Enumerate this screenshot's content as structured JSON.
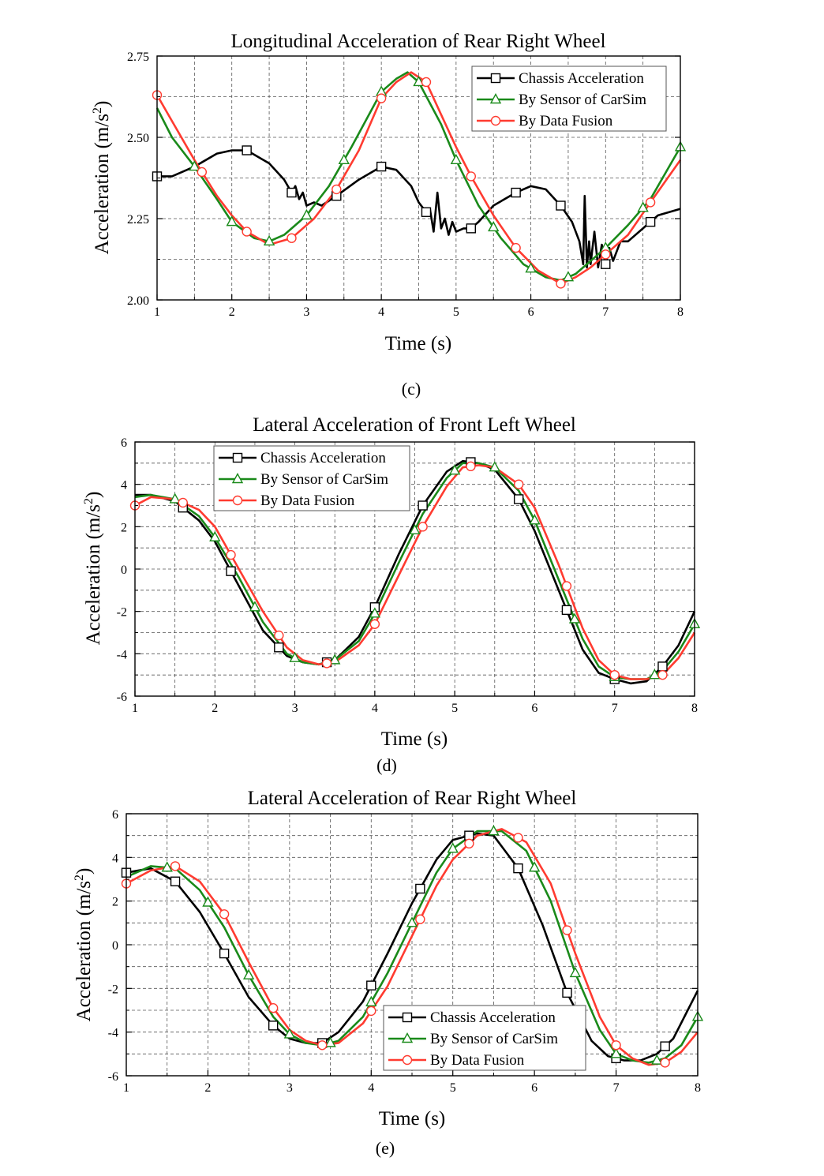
{
  "figure": {
    "captions": [
      "(c)",
      "(d)",
      "(e)"
    ]
  },
  "colors": {
    "chassis": "#000000",
    "sensor": "#1a8a1a",
    "fusion": "#ff3b30"
  },
  "chart_data": [
    {
      "type": "line",
      "title": "Longitudinal Acceleration of Rear Right Wheel",
      "xlabel": "Time (s)",
      "ylabel": "Acceleration (m/s²)",
      "xlim": [
        1,
        8
      ],
      "ylim": [
        2.0,
        2.75
      ],
      "xticks": [
        1,
        2,
        3,
        4,
        5,
        6,
        7,
        8
      ],
      "yticks": [
        2.0,
        2.25,
        2.5,
        2.75
      ],
      "ytick_labels": [
        "2.00",
        "2.25",
        "2.50",
        "2.75"
      ],
      "grid": true,
      "legend_position": "top-right",
      "series": [
        {
          "name": "Chassis Acceleration",
          "marker": "square",
          "x": [
            1.0,
            1.2,
            1.5,
            1.8,
            2.0,
            2.2,
            2.5,
            2.7,
            2.8,
            2.85,
            2.9,
            2.95,
            3.0,
            3.1,
            3.2,
            3.4,
            3.7,
            4.0,
            4.2,
            4.4,
            4.5,
            4.6,
            4.65,
            4.7,
            4.75,
            4.8,
            4.85,
            4.9,
            4.95,
            5.0,
            5.1,
            5.2,
            5.3,
            5.5,
            5.8,
            6.0,
            6.2,
            6.4,
            6.55,
            6.65,
            6.7,
            6.72,
            6.75,
            6.78,
            6.8,
            6.85,
            6.9,
            6.95,
            7.0,
            7.05,
            7.1,
            7.2,
            7.3,
            7.5,
            7.7,
            8.0
          ],
          "y": [
            2.38,
            2.38,
            2.41,
            2.45,
            2.46,
            2.46,
            2.42,
            2.37,
            2.33,
            2.35,
            2.31,
            2.33,
            2.29,
            2.3,
            2.29,
            2.32,
            2.37,
            2.41,
            2.4,
            2.35,
            2.3,
            2.27,
            2.28,
            2.21,
            2.33,
            2.22,
            2.25,
            2.2,
            2.24,
            2.21,
            2.22,
            2.22,
            2.24,
            2.29,
            2.33,
            2.35,
            2.34,
            2.29,
            2.24,
            2.18,
            2.11,
            2.32,
            2.1,
            2.18,
            2.11,
            2.21,
            2.1,
            2.17,
            2.11,
            2.16,
            2.12,
            2.18,
            2.18,
            2.22,
            2.26,
            2.28
          ],
          "marker_x": [
            1.0,
            2.2,
            2.8,
            3.4,
            4.0,
            4.6,
            5.2,
            5.8,
            6.4,
            7.0,
            7.6
          ]
        },
        {
          "name": "By Sensor of CarSim",
          "marker": "triangle",
          "x": [
            1.0,
            1.2,
            1.5,
            1.8,
            2.0,
            2.3,
            2.5,
            2.7,
            3.0,
            3.3,
            3.6,
            4.0,
            4.2,
            4.35,
            4.5,
            4.8,
            5.0,
            5.3,
            5.6,
            5.9,
            6.2,
            6.4,
            6.6,
            6.8,
            7.0,
            7.3,
            7.6,
            8.0
          ],
          "y": [
            2.59,
            2.5,
            2.41,
            2.31,
            2.24,
            2.19,
            2.18,
            2.2,
            2.26,
            2.35,
            2.47,
            2.64,
            2.68,
            2.7,
            2.67,
            2.54,
            2.43,
            2.29,
            2.19,
            2.11,
            2.07,
            2.06,
            2.08,
            2.12,
            2.16,
            2.23,
            2.31,
            2.47
          ],
          "marker_x": [
            1.5,
            2.0,
            2.5,
            3.0,
            3.5,
            4.0,
            4.5,
            5.0,
            5.5,
            6.0,
            6.5,
            7.0,
            7.5,
            8.0
          ]
        },
        {
          "name": "By Data Fusion",
          "marker": "circle",
          "x": [
            1.0,
            1.2,
            1.5,
            1.8,
            2.0,
            2.2,
            2.5,
            2.8,
            3.1,
            3.4,
            3.7,
            4.0,
            4.2,
            4.4,
            4.6,
            4.8,
            5.0,
            5.2,
            5.5,
            5.8,
            6.1,
            6.4,
            6.6,
            6.8,
            7.0,
            7.3,
            7.6,
            8.0
          ],
          "y": [
            2.63,
            2.55,
            2.43,
            2.32,
            2.26,
            2.21,
            2.17,
            2.19,
            2.25,
            2.34,
            2.46,
            2.62,
            2.67,
            2.7,
            2.67,
            2.57,
            2.47,
            2.38,
            2.26,
            2.16,
            2.09,
            2.05,
            2.07,
            2.1,
            2.14,
            2.2,
            2.3,
            2.43
          ],
          "marker_x": [
            1.0,
            1.6,
            2.2,
            2.8,
            3.4,
            4.0,
            4.6,
            5.2,
            5.8,
            6.4,
            7.0,
            7.6
          ]
        }
      ]
    },
    {
      "type": "line",
      "title": "Lateral Acceleration of Front Left Wheel",
      "xlabel": "Time (s)",
      "ylabel": "Acceleration (m/s²)",
      "xlim": [
        1,
        8
      ],
      "ylim": [
        -6,
        6
      ],
      "xticks": [
        1,
        2,
        3,
        4,
        5,
        6,
        7,
        8
      ],
      "yticks": [
        -6,
        -4,
        -2,
        0,
        2,
        4,
        6
      ],
      "ytick_labels": [
        "-6",
        "-4",
        "-2",
        "0",
        "2",
        "4",
        "6"
      ],
      "grid": true,
      "legend_position": "top-left",
      "series": [
        {
          "name": "Chassis Acceleration",
          "marker": "square",
          "x": [
            1.0,
            1.2,
            1.5,
            1.8,
            2.0,
            2.3,
            2.6,
            2.9,
            3.1,
            3.3,
            3.5,
            3.8,
            4.0,
            4.3,
            4.6,
            4.9,
            5.1,
            5.3,
            5.5,
            5.8,
            6.0,
            6.3,
            6.6,
            6.8,
            7.0,
            7.2,
            7.4,
            7.6,
            7.8,
            8.0
          ],
          "y": [
            3.5,
            3.5,
            3.2,
            2.3,
            1.3,
            -0.8,
            -2.9,
            -4.1,
            -4.4,
            -4.5,
            -4.3,
            -3.2,
            -1.8,
            0.7,
            3.0,
            4.6,
            5.1,
            5.0,
            4.7,
            3.3,
            1.8,
            -1.0,
            -3.8,
            -4.9,
            -5.2,
            -5.4,
            -5.3,
            -4.6,
            -3.6,
            -2.0
          ],
          "marker_x": [
            1.6,
            2.2,
            2.8,
            3.4,
            4.0,
            4.6,
            5.2,
            5.8,
            6.4,
            7.0,
            7.6
          ]
        },
        {
          "name": "By Sensor of CarSim",
          "marker": "triangle",
          "x": [
            1.0,
            1.2,
            1.5,
            1.8,
            2.0,
            2.3,
            2.6,
            2.9,
            3.1,
            3.3,
            3.5,
            3.8,
            4.0,
            4.3,
            4.6,
            4.9,
            5.1,
            5.3,
            5.5,
            5.8,
            6.0,
            6.3,
            6.6,
            6.8,
            7.0,
            7.2,
            7.4,
            7.6,
            7.8,
            8.0
          ],
          "y": [
            3.4,
            3.5,
            3.3,
            2.5,
            1.5,
            -0.4,
            -2.5,
            -4.0,
            -4.4,
            -4.5,
            -4.3,
            -3.4,
            -2.1,
            0.3,
            2.6,
            4.3,
            5.0,
            5.0,
            4.8,
            3.7,
            2.3,
            -0.5,
            -3.3,
            -4.6,
            -5.1,
            -5.2,
            -5.2,
            -4.8,
            -3.9,
            -2.6
          ],
          "marker_x": [
            1.5,
            2.0,
            2.5,
            3.0,
            3.5,
            4.0,
            4.5,
            5.0,
            5.5,
            6.0,
            6.5,
            7.0,
            7.5,
            8.0
          ]
        },
        {
          "name": "By Data Fusion",
          "marker": "circle",
          "x": [
            1.0,
            1.2,
            1.5,
            1.8,
            2.0,
            2.3,
            2.6,
            2.9,
            3.1,
            3.3,
            3.5,
            3.8,
            4.0,
            4.3,
            4.6,
            4.9,
            5.1,
            5.3,
            5.5,
            5.8,
            6.0,
            6.3,
            6.6,
            6.8,
            7.0,
            7.2,
            7.4,
            7.6,
            7.8,
            8.0
          ],
          "y": [
            3.0,
            3.4,
            3.3,
            2.8,
            2.0,
            0.0,
            -2.0,
            -3.7,
            -4.3,
            -4.5,
            -4.4,
            -3.6,
            -2.6,
            -0.3,
            2.0,
            3.9,
            4.8,
            4.9,
            4.8,
            4.0,
            2.9,
            0.2,
            -2.8,
            -4.3,
            -5.0,
            -5.2,
            -5.2,
            -5.0,
            -4.2,
            -3.0
          ],
          "marker_x": [
            1.0,
            1.6,
            2.2,
            2.8,
            3.4,
            4.0,
            4.6,
            5.2,
            5.8,
            6.4,
            7.0,
            7.6
          ]
        }
      ]
    },
    {
      "type": "line",
      "title": "Lateral Acceleration of Rear Right Wheel",
      "xlabel": "Time (s)",
      "ylabel": "Acceleration (m/s²)",
      "xlim": [
        1,
        8
      ],
      "ylim": [
        -6,
        6
      ],
      "xticks": [
        1,
        2,
        3,
        4,
        5,
        6,
        7,
        8
      ],
      "yticks": [
        -6,
        -4,
        -2,
        0,
        2,
        4,
        6
      ],
      "ytick_labels": [
        "-6",
        "-4",
        "-2",
        "0",
        "2",
        "4",
        "6"
      ],
      "grid": true,
      "legend_position": "bottom-center",
      "series": [
        {
          "name": "Chassis Acceleration",
          "marker": "square",
          "x": [
            1.0,
            1.3,
            1.6,
            1.9,
            2.2,
            2.5,
            2.8,
            3.0,
            3.2,
            3.4,
            3.6,
            3.9,
            4.2,
            4.5,
            4.8,
            5.0,
            5.3,
            5.5,
            5.8,
            6.1,
            6.4,
            6.7,
            6.9,
            7.1,
            7.3,
            7.5,
            7.7,
            8.0
          ],
          "y": [
            3.3,
            3.5,
            2.9,
            1.5,
            -0.4,
            -2.4,
            -3.7,
            -4.3,
            -4.5,
            -4.5,
            -4.0,
            -2.6,
            -0.4,
            1.9,
            3.9,
            4.8,
            5.1,
            5.0,
            3.5,
            0.9,
            -2.2,
            -4.4,
            -5.1,
            -5.3,
            -5.3,
            -5.0,
            -4.3,
            -2.1
          ],
          "marker_x": [
            1.0,
            1.6,
            2.2,
            2.8,
            3.4,
            4.0,
            4.6,
            5.2,
            5.8,
            6.4,
            7.0,
            7.6
          ]
        },
        {
          "name": "By Sensor of CarSim",
          "marker": "triangle",
          "x": [
            1.0,
            1.3,
            1.6,
            1.9,
            2.2,
            2.5,
            2.8,
            3.0,
            3.2,
            3.4,
            3.6,
            3.9,
            4.2,
            4.5,
            4.8,
            5.0,
            5.3,
            5.6,
            5.9,
            6.2,
            6.5,
            6.8,
            7.0,
            7.2,
            7.4,
            7.6,
            7.8,
            8.0
          ],
          "y": [
            3.1,
            3.6,
            3.5,
            2.5,
            0.8,
            -1.4,
            -3.3,
            -4.1,
            -4.5,
            -4.6,
            -4.4,
            -3.3,
            -1.3,
            1.0,
            3.3,
            4.4,
            5.2,
            5.2,
            4.3,
            2.0,
            -1.3,
            -3.9,
            -5.0,
            -5.3,
            -5.4,
            -5.2,
            -4.6,
            -3.3
          ],
          "marker_x": [
            1.5,
            2.0,
            2.5,
            3.0,
            3.5,
            4.0,
            4.5,
            5.0,
            5.5,
            6.0,
            6.5,
            7.0,
            7.5,
            8.0
          ]
        },
        {
          "name": "By Data Fusion",
          "marker": "circle",
          "x": [
            1.0,
            1.3,
            1.6,
            1.9,
            2.2,
            2.5,
            2.8,
            3.0,
            3.2,
            3.4,
            3.6,
            3.9,
            4.2,
            4.5,
            4.8,
            5.0,
            5.3,
            5.6,
            5.9,
            6.2,
            6.5,
            6.8,
            7.0,
            7.2,
            7.4,
            7.6,
            7.8,
            8.0
          ],
          "y": [
            2.8,
            3.4,
            3.6,
            2.9,
            1.4,
            -0.8,
            -2.9,
            -3.9,
            -4.4,
            -4.6,
            -4.5,
            -3.6,
            -1.9,
            0.4,
            2.7,
            3.9,
            5.0,
            5.3,
            4.7,
            2.8,
            -0.4,
            -3.3,
            -4.6,
            -5.2,
            -5.5,
            -5.4,
            -4.9,
            -4.0
          ],
          "marker_x": [
            1.0,
            1.6,
            2.2,
            2.8,
            3.4,
            4.0,
            4.6,
            5.2,
            5.8,
            6.4,
            7.0,
            7.6
          ]
        }
      ]
    }
  ]
}
